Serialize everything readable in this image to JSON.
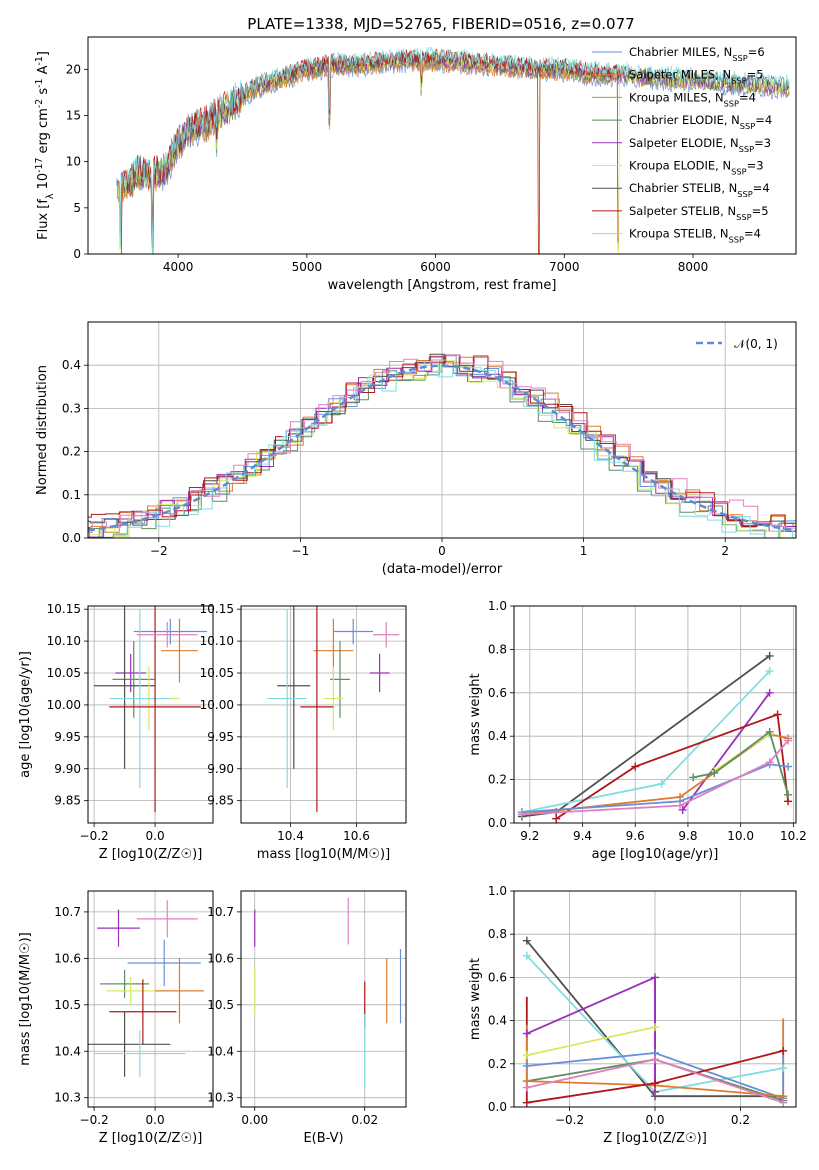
{
  "figure_title": "PLATE=1338, MJD=52765, FIBERID=0516, z=0.077",
  "colors": {
    "Chabrier MILES": "#6a8fd8",
    "Salpeter MILES": "#e07b2c",
    "Kroupa MILES": "#c8902a",
    "Chabrier ELODIE": "#5e8f5e",
    "Salpeter ELODIE": "#9a30b8",
    "Kroupa ELODIE": "#d8e860",
    "Chabrier STELIB": "#505050",
    "Salpeter STELIB": "#b01818",
    "Kroupa STELIB": "#80dde0",
    "Pink": "#e080c0",
    "Normal": "#5b8bd9",
    "Grid": "#b0b0b0"
  },
  "chart_data": [
    {
      "id": "spectrum",
      "type": "line",
      "xlabel": "wavelength [Angstrom, rest frame]",
      "ylabel": "Flux [f_λ 10^-17 erg cm^-2 s^-1 A^-1]",
      "xlim": [
        3300,
        8800
      ],
      "ylim": [
        0,
        23.5
      ],
      "xticks": [
        4000,
        5000,
        6000,
        7000,
        8000
      ],
      "yticks": [
        0,
        5,
        10,
        15,
        20
      ],
      "legend_position": "right",
      "legend": [
        {
          "name": "Chabrier MILES, N_SSP=6",
          "color_key": "Chabrier MILES"
        },
        {
          "name": "Salpeter MILES, N_SSP=5",
          "color_key": "Salpeter MILES"
        },
        {
          "name": "Kroupa MILES, N_SSP=4",
          "color_key": "Kroupa MILES"
        },
        {
          "name": "Chabrier ELODIE, N_SSP=4",
          "color_key": "Chabrier ELODIE"
        },
        {
          "name": "Salpeter ELODIE, N_SSP=3",
          "color_key": "Salpeter ELODIE"
        },
        {
          "name": "Kroupa ELODIE, N_SSP=3",
          "color_key": "Kroupa ELODIE"
        },
        {
          "name": "Chabrier STELIB, N_SSP=4",
          "color_key": "Chabrier STELIB"
        },
        {
          "name": "Salpeter STELIB, N_SSP=5",
          "color_key": "Salpeter STELIB"
        },
        {
          "name": "Kroupa STELIB, N_SSP=4",
          "color_key": "Kroupa STELIB"
        }
      ],
      "continuum": {
        "x": [
          3520,
          3600,
          3700,
          3800,
          3900,
          4000,
          4100,
          4200,
          4300,
          4400,
          4500,
          4600,
          4700,
          4800,
          4900,
          5000,
          5100,
          5200,
          5400,
          5600,
          5800,
          6000,
          6200,
          6400,
          6600,
          6800,
          7000,
          7200,
          7400,
          7600,
          7800,
          8000,
          8200,
          8400,
          8600,
          8750
        ],
        "y": [
          7.5,
          7.5,
          9,
          8.5,
          9,
          12,
          13.5,
          14,
          15,
          16,
          17,
          18,
          18.5,
          19,
          19.5,
          20,
          20.2,
          20.5,
          20.5,
          20.8,
          21,
          21,
          20.8,
          20.5,
          20.3,
          20,
          20,
          19.5,
          19.5,
          19.2,
          19,
          18.8,
          18.6,
          18.4,
          18.2,
          18
        ]
      },
      "absorption_dips": [
        {
          "x": 3550,
          "depth": 7.5
        },
        {
          "x": 3800,
          "depth": 9
        },
        {
          "x": 4300,
          "depth": 3
        },
        {
          "x": 5175,
          "depth": 6.5
        },
        {
          "x": 5890,
          "depth": 3.5
        },
        {
          "x": 6800,
          "depth": 20
        },
        {
          "x": 7420,
          "depth": 19
        }
      ]
    },
    {
      "id": "residual_histogram",
      "type": "histogram",
      "xlabel": "(data-model)/error",
      "ylabel": "Normed distribution",
      "xlim": [
        -2.5,
        2.5
      ],
      "ylim": [
        0,
        0.5
      ],
      "xticks": [
        -2,
        -1,
        0,
        1,
        2
      ],
      "yticks": [
        0.0,
        0.1,
        0.2,
        0.3,
        0.4
      ],
      "legend_position": "top-right",
      "legend": [
        {
          "name": "𝒩(0, 1)",
          "color_key": "Normal"
        }
      ],
      "bin_width": 0.1,
      "series": [
        {
          "color_key": "Chabrier MILES",
          "offset": 0.0
        },
        {
          "color_key": "Salpeter MILES",
          "offset": 0.01
        },
        {
          "color_key": "Chabrier ELODIE",
          "offset": -0.01
        },
        {
          "color_key": "Salpeter ELODIE",
          "offset": 0.005
        },
        {
          "color_key": "Kroupa ELODIE",
          "offset": -0.005
        },
        {
          "color_key": "Chabrier STELIB",
          "offset": 0.008
        },
        {
          "color_key": "Salpeter STELIB",
          "offset": 0.012
        },
        {
          "color_key": "Kroupa STELIB",
          "offset": -0.012
        },
        {
          "color_key": "Pink",
          "offset": 0.015
        }
      ]
    },
    {
      "id": "age_vs_Z",
      "type": "errorbar",
      "xlabel": "Z [log10(Z/Z☉)]",
      "ylabel": "age [log10(age/yr)]",
      "xlim": [
        -0.22,
        0.19
      ],
      "ylim": [
        9.815,
        10.155
      ],
      "xticks": [
        -0.2,
        0.0
      ],
      "yticks": [
        9.85,
        9.9,
        9.95,
        10.0,
        10.05,
        10.1,
        10.15
      ],
      "points": [
        {
          "color_key": "Chabrier MILES",
          "x": 0.05,
          "xerr": 0.12,
          "y": 10.115,
          "yerr": 0.02
        },
        {
          "color_key": "Salpeter MILES",
          "x": 0.08,
          "xerr": 0.06,
          "y": 10.085,
          "yerr": 0.05
        },
        {
          "color_key": "Salpeter ELODIE",
          "x": -0.08,
          "xerr": 0.05,
          "y": 10.05,
          "yerr": 0.03
        },
        {
          "color_key": "Chabrier ELODIE",
          "x": -0.07,
          "xerr": 0.07,
          "y": 10.04,
          "yerr": 0.06
        },
        {
          "color_key": "Chabrier STELIB",
          "x": -0.1,
          "xerr": 0.1,
          "y": 10.03,
          "yerr": 0.13
        },
        {
          "color_key": "Kroupa ELODIE",
          "x": -0.02,
          "xerr": 0.1,
          "y": 10.01,
          "yerr": 0.05
        },
        {
          "color_key": "Kroupa STELIB",
          "x": -0.05,
          "xerr": 0.1,
          "y": 10.01,
          "yerr": 0.14
        },
        {
          "color_key": "Salpeter STELIB",
          "x": 0.0,
          "xerr": 0.15,
          "y": 9.997,
          "yerr": 0.165
        },
        {
          "color_key": "Pink",
          "x": 0.04,
          "xerr": 0.1,
          "y": 10.11,
          "yerr": 0.02
        }
      ]
    },
    {
      "id": "age_vs_mass",
      "type": "errorbar",
      "xlabel": "mass [log10(M/M☉)]",
      "ylabel": "",
      "xlim": [
        10.25,
        10.75
      ],
      "ylim": [
        9.815,
        10.155
      ],
      "xticks": [
        10.4,
        10.6
      ],
      "yticks": [
        9.85,
        9.9,
        9.95,
        10.0,
        10.05,
        10.1,
        10.15
      ],
      "points": [
        {
          "color_key": "Chabrier MILES",
          "x": 10.59,
          "xerr": 0.06,
          "y": 10.115,
          "yerr": 0.02
        },
        {
          "color_key": "Salpeter MILES",
          "x": 10.53,
          "xerr": 0.06,
          "y": 10.085,
          "yerr": 0.05
        },
        {
          "color_key": "Salpeter ELODIE",
          "x": 10.67,
          "xerr": 0.03,
          "y": 10.05,
          "yerr": 0.03
        },
        {
          "color_key": "Chabrier ELODIE",
          "x": 10.55,
          "xerr": 0.03,
          "y": 10.04,
          "yerr": 0.06
        },
        {
          "color_key": "Chabrier STELIB",
          "x": 10.41,
          "xerr": 0.05,
          "y": 10.03,
          "yerr": 0.13
        },
        {
          "color_key": "Kroupa ELODIE",
          "x": 10.53,
          "xerr": 0.03,
          "y": 10.01,
          "yerr": 0.05
        },
        {
          "color_key": "Kroupa STELIB",
          "x": 10.39,
          "xerr": 0.06,
          "y": 10.01,
          "yerr": 0.14
        },
        {
          "color_key": "Salpeter STELIB",
          "x": 10.48,
          "xerr": 0.05,
          "y": 9.997,
          "yerr": 0.165
        },
        {
          "color_key": "Pink",
          "x": 10.69,
          "xerr": 0.04,
          "y": 10.11,
          "yerr": 0.02
        }
      ]
    },
    {
      "id": "mass_weight_vs_age",
      "type": "line",
      "xlabel": "age [log10(age/yr)]",
      "ylabel": "mass weight",
      "xlim": [
        9.14,
        10.21
      ],
      "ylim": [
        0,
        1
      ],
      "xticks": [
        9.2,
        9.4,
        9.6,
        9.8,
        10.0,
        10.2
      ],
      "yticks": [
        0.0,
        0.2,
        0.4,
        0.6,
        0.8,
        1.0
      ],
      "series": [
        {
          "color_key": "Chabrier STELIB",
          "x": [
            9.17,
            9.3,
            10.11
          ],
          "y": [
            0.03,
            0.05,
            0.77
          ]
        },
        {
          "color_key": "Kroupa STELIB",
          "x": [
            9.17,
            9.7,
            10.11
          ],
          "y": [
            0.05,
            0.18,
            0.7
          ]
        },
        {
          "color_key": "Salpeter ELODIE",
          "x": [
            9.78,
            10.11
          ],
          "y": [
            0.06,
            0.6
          ]
        },
        {
          "color_key": "Salpeter STELIB",
          "x": [
            9.3,
            9.6,
            10.14,
            10.18
          ],
          "y": [
            0.02,
            0.26,
            0.5,
            0.1
          ]
        },
        {
          "color_key": "Salpeter MILES",
          "x": [
            9.17,
            9.77,
            10.11,
            10.18
          ],
          "y": [
            0.04,
            0.12,
            0.41,
            0.39
          ]
        },
        {
          "color_key": "Kroupa ELODIE",
          "x": [
            9.9,
            10.11
          ],
          "y": [
            0.24,
            0.41
          ]
        },
        {
          "color_key": "Chabrier ELODIE",
          "x": [
            9.82,
            9.9,
            10.11,
            10.18
          ],
          "y": [
            0.21,
            0.23,
            0.42,
            0.13
          ]
        },
        {
          "color_key": "Chabrier MILES",
          "x": [
            9.17,
            9.77,
            10.11,
            10.18
          ],
          "y": [
            0.05,
            0.1,
            0.27,
            0.26
          ]
        },
        {
          "color_key": "Pink",
          "x": [
            9.17,
            9.77,
            10.11,
            10.18
          ],
          "y": [
            0.04,
            0.08,
            0.28,
            0.38
          ]
        }
      ]
    },
    {
      "id": "mass_vs_Z",
      "type": "errorbar",
      "xlabel": "Z [log10(Z/Z☉)]",
      "ylabel": "mass [log10(M/M☉)]",
      "xlim": [
        -0.22,
        0.19
      ],
      "ylim": [
        10.28,
        10.745
      ],
      "xticks": [
        -0.2,
        0.0
      ],
      "yticks": [
        10.3,
        10.4,
        10.5,
        10.6,
        10.7
      ],
      "points": [
        {
          "color_key": "Pink",
          "x": 0.04,
          "xerr": 0.1,
          "y": 10.685,
          "yerr": 0.04
        },
        {
          "color_key": "Salpeter ELODIE",
          "x": -0.12,
          "xerr": 0.07,
          "y": 10.665,
          "yerr": 0.04
        },
        {
          "color_key": "Chabrier MILES",
          "x": 0.03,
          "xerr": 0.12,
          "y": 10.59,
          "yerr": 0.05
        },
        {
          "color_key": "Chabrier ELODIE",
          "x": -0.1,
          "xerr": 0.08,
          "y": 10.545,
          "yerr": 0.03
        },
        {
          "color_key": "Kroupa ELODIE",
          "x": -0.08,
          "xerr": 0.08,
          "y": 10.53,
          "yerr": 0.03
        },
        {
          "color_key": "Salpeter MILES",
          "x": 0.08,
          "xerr": 0.08,
          "y": 10.53,
          "yerr": 0.07
        },
        {
          "color_key": "Salpeter STELIB",
          "x": -0.04,
          "xerr": 0.11,
          "y": 10.485,
          "yerr": 0.07
        },
        {
          "color_key": "Chabrier STELIB",
          "x": -0.1,
          "xerr": 0.15,
          "y": 10.415,
          "yerr": 0.07
        },
        {
          "color_key": "Kroupa STELIB",
          "x": -0.05,
          "xerr": 0.15,
          "y": 10.395,
          "yerr": 0.05
        }
      ]
    },
    {
      "id": "mass_vs_ebv",
      "type": "errorbar",
      "xlabel": "E(B-V)",
      "ylabel": "",
      "xlim": [
        -0.0025,
        0.0275
      ],
      "ylim": [
        10.28,
        10.745
      ],
      "xticks": [
        0.0,
        0.02
      ],
      "xtick_labels": [
        "0.00",
        "0.02"
      ],
      "yticks": [
        10.3,
        10.4,
        10.5,
        10.6,
        10.7
      ],
      "points": [
        {
          "color_key": "Salpeter ELODIE",
          "x": 0.0,
          "xerr": 0.0,
          "y": 10.665,
          "yerr": 0.04
        },
        {
          "color_key": "Kroupa ELODIE",
          "x": 0.0,
          "xerr": 0.0,
          "y": 10.53,
          "yerr": 0.05
        },
        {
          "color_key": "Pink",
          "x": 0.017,
          "xerr": 0.0,
          "y": 10.68,
          "yerr": 0.05
        },
        {
          "color_key": "Salpeter STELIB",
          "x": 0.02,
          "xerr": 0.0,
          "y": 10.5,
          "yerr": 0.05
        },
        {
          "color_key": "Kroupa STELIB",
          "x": 0.02,
          "xerr": 0.0,
          "y": 10.4,
          "yerr": 0.08
        },
        {
          "color_key": "Salpeter MILES",
          "x": 0.024,
          "xerr": 0.0,
          "y": 10.53,
          "yerr": 0.07
        },
        {
          "color_key": "Chabrier MILES",
          "x": 0.0265,
          "xerr": 0.0,
          "y": 10.54,
          "yerr": 0.08
        }
      ]
    },
    {
      "id": "mass_weight_vs_Z",
      "type": "line",
      "xlabel": "Z [log10(Z/Z☉)]",
      "ylabel": "mass weight",
      "xlim": [
        -0.33,
        0.33
      ],
      "ylim": [
        0,
        1
      ],
      "xticks": [
        -0.2,
        0.0,
        0.2
      ],
      "yticks": [
        0.0,
        0.2,
        0.4,
        0.6,
        0.8,
        1.0
      ],
      "series": [
        {
          "color_key": "Chabrier STELIB",
          "x": [
            -0.3,
            0.0,
            0.3
          ],
          "y": [
            0.77,
            0.05,
            0.05
          ]
        },
        {
          "color_key": "Kroupa STELIB",
          "x": [
            -0.3,
            0.0,
            0.3
          ],
          "y": [
            0.7,
            0.07,
            0.18
          ]
        },
        {
          "color_key": "Salpeter ELODIE",
          "x": [
            -0.3,
            0.0,
            0.0
          ],
          "y": [
            0.34,
            0.6,
            0.07
          ]
        },
        {
          "color_key": "Kroupa ELODIE",
          "x": [
            -0.3,
            0.0
          ],
          "y": [
            0.24,
            0.37
          ]
        },
        {
          "color_key": "Chabrier MILES",
          "x": [
            -0.3,
            0.0,
            0.3
          ],
          "y": [
            0.19,
            0.25,
            0.04
          ]
        },
        {
          "color_key": "Chabrier ELODIE",
          "x": [
            -0.3,
            0.0,
            0.3
          ],
          "y": [
            0.12,
            0.22,
            0.03
          ]
        },
        {
          "color_key": "Salpeter MILES",
          "x": [
            -0.3,
            0.0,
            0.3
          ],
          "y": [
            0.12,
            0.1,
            0.05
          ]
        },
        {
          "color_key": "Salpeter STELIB",
          "x": [
            -0.3,
            0.0,
            0.3
          ],
          "y": [
            0.02,
            0.11,
            0.26
          ]
        },
        {
          "color_key": "Pink",
          "x": [
            -0.3,
            0.0,
            0.3
          ],
          "y": [
            0.09,
            0.22,
            0.02
          ]
        }
      ],
      "vertical_segments": [
        {
          "color_key": "Salpeter STELIB",
          "x": -0.3,
          "y": [
            0.02,
            0.51
          ]
        },
        {
          "color_key": "Salpeter MILES",
          "x": -0.3,
          "y": [
            0.12,
            0.38
          ]
        },
        {
          "color_key": "Salpeter ELODIE",
          "x": 0.0,
          "y": [
            0.07,
            0.6
          ]
        },
        {
          "color_key": "Salpeter MILES",
          "x": 0.3,
          "y": [
            0.05,
            0.41
          ]
        },
        {
          "color_key": "Chabrier MILES",
          "x": 0.3,
          "y": [
            0.04,
            0.27
          ]
        }
      ]
    }
  ]
}
